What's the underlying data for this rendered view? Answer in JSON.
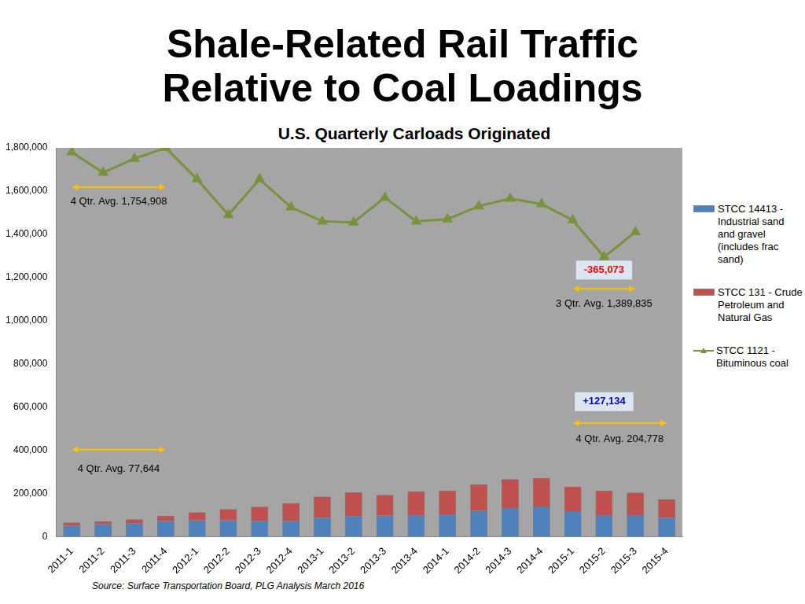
{
  "chart_data": {
    "type": "bar",
    "title": [
      "Shale-Related Rail Traffic",
      "Relative to Coal Loadings"
    ],
    "subtitle": "U.S. Quarterly Carloads Originated",
    "source": "Source: Surface Transportation Board, PLG Analysis March 2016",
    "categories": [
      "2011-1",
      "2011-2",
      "2011-3",
      "2011-4",
      "2012-1",
      "2012-2",
      "2012-3",
      "2012-4",
      "2013-1",
      "2013-2",
      "2013-3",
      "2013-4",
      "2014-1",
      "2014-2",
      "2014-3",
      "2014-4",
      "2015-1",
      "2015-2",
      "2015-3",
      "2015-4"
    ],
    "series": [
      {
        "name": "STCC 14413 - Industrial sand and gravel (includes frac sand)",
        "type": "bar",
        "color": "#4f81bd",
        "values": [
          50000,
          58000,
          62000,
          72000,
          75000,
          75000,
          72000,
          72000,
          88000,
          95000,
          97000,
          100000,
          102000,
          120000,
          132000,
          140000,
          118000,
          100000,
          100000,
          88000
        ]
      },
      {
        "name": "STCC 131 - Crude Petroleum and Natural Gas",
        "type": "bar",
        "color": "#c0504d",
        "values": [
          15000,
          12000,
          18000,
          25000,
          37000,
          52000,
          66000,
          83000,
          97000,
          110000,
          95000,
          110000,
          111000,
          122000,
          133000,
          132000,
          114000,
          112000,
          103000,
          84000
        ]
      },
      {
        "name": "STCC 1121 - Bituminous coal",
        "type": "line",
        "color": "#77933c",
        "marker": "triangle",
        "line_style": "solid",
        "values": [
          1780000,
          1685000,
          1750000,
          1800000,
          1655000,
          1490000,
          1655000,
          1525000,
          1460000,
          1455000,
          1570000,
          1460000,
          1470000,
          1530000,
          1565000,
          1540000,
          1465000,
          1295000,
          1410000,
          null
        ]
      }
    ],
    "stacked": true,
    "ylim": [
      0,
      1800000
    ],
    "yticks": [
      0,
      {
        "value": 200000,
        "label": "200,000"
      },
      {
        "value": 400000,
        "label": "400,000"
      },
      {
        "value": 600000,
        "label": "600,000"
      },
      {
        "value": 800000,
        "label": "800,000"
      },
      {
        "value": 1000000,
        "label": "1,000,000"
      },
      {
        "value": 1200000,
        "label": "1,200,000"
      },
      {
        "value": 1400000,
        "label": "1,400,000"
      },
      {
        "value": 1600000,
        "label": "1,600,000"
      },
      {
        "value": 1800000,
        "label": "1,800,000"
      }
    ],
    "grid": false,
    "legend": "right",
    "annotations": [
      {
        "text": "4 Qtr. Avg. 1,754,908",
        "x_from": "2011-1",
        "x_to": "2011-4",
        "y": 1618000,
        "text_y": 1550000
      },
      {
        "text": "3 Qtr. Avg. 1,389,835",
        "x_from": "2015-1",
        "x_to": "2015-3",
        "y": 1147000,
        "text_y": 1076000
      },
      {
        "text": "4 Qtr. Avg. 204,778",
        "x_from": "2015-1",
        "x_to": "2015-4",
        "y": 526000,
        "text_y": 451000
      },
      {
        "text": "4 Qtr. Avg. 77,644",
        "x_from": "2011-1",
        "x_to": "2011-4",
        "y": 403000,
        "text_y": 313000
      }
    ],
    "callouts": [
      {
        "text": "-365,073",
        "x": "2015-2",
        "y": 1234000,
        "color": "#ff0000"
      },
      {
        "text": "+127,134",
        "x": "2015-2",
        "y": 625000,
        "color": "#0000cc"
      }
    ]
  }
}
